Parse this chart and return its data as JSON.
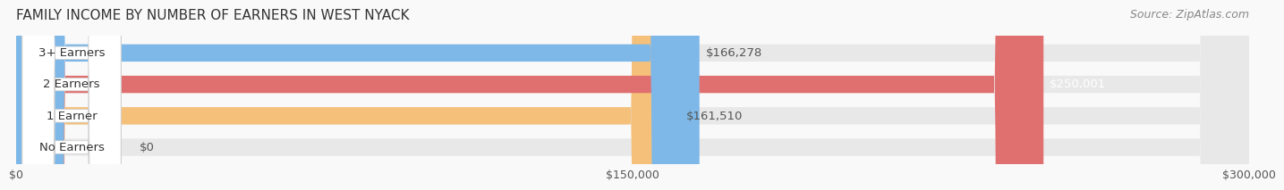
{
  "title": "FAMILY INCOME BY NUMBER OF EARNERS IN WEST NYACK",
  "source": "Source: ZipAtlas.com",
  "categories": [
    "No Earners",
    "1 Earner",
    "2 Earners",
    "3+ Earners"
  ],
  "values": [
    0,
    161510,
    250001,
    166278
  ],
  "labels": [
    "$0",
    "$161,510",
    "$250,001",
    "$166,278"
  ],
  "bar_colors": [
    "#f4a0b0",
    "#f5c07a",
    "#e07070",
    "#7eb8e8"
  ],
  "bar_bg_color": "#eeeeee",
  "label_colors": [
    "#555555",
    "#555555",
    "#ffffff",
    "#555555"
  ],
  "xlim": [
    0,
    300000
  ],
  "xticks": [
    0,
    150000,
    300000
  ],
  "xtick_labels": [
    "$0",
    "$150,000",
    "$300,000"
  ],
  "title_fontsize": 11,
  "source_fontsize": 9,
  "label_fontsize": 9.5,
  "tick_fontsize": 9,
  "bar_height": 0.55,
  "background_color": "#f9f9f9"
}
